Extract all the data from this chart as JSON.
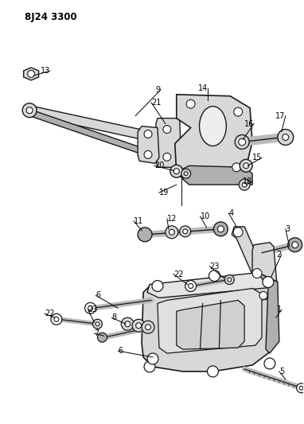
{
  "title": "8J24 3300",
  "bg": "#ffffff",
  "lc": "#1a1a1a",
  "figsize": [
    3.82,
    5.33
  ],
  "dpi": 100
}
